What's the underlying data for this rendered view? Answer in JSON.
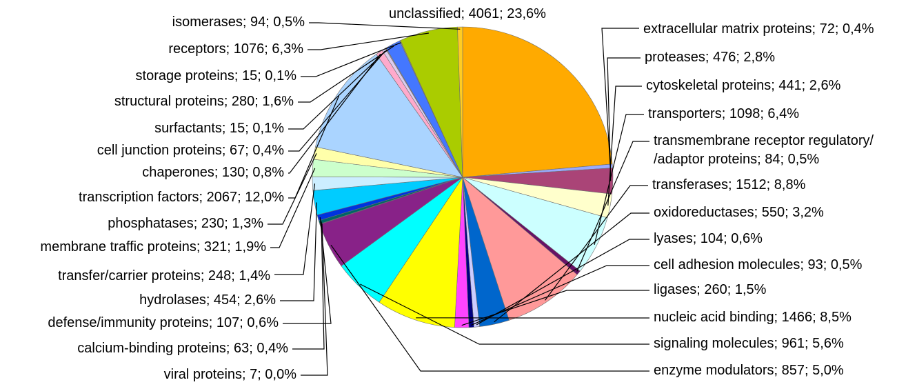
{
  "chart_data": {
    "type": "pie",
    "title": "",
    "start": "top",
    "direction": "clockwise",
    "legend": "none",
    "slices": [
      {
        "label": "unclassified; 4061; 23,6%",
        "name": "unclassified",
        "count": 4061,
        "percent": 23.6,
        "color": "#FFAA00"
      },
      {
        "label": "extracellular matrix proteins; 72; 0,4%",
        "name": "extracellular matrix proteins",
        "count": 72,
        "percent": 0.4,
        "color": "#99AAFF"
      },
      {
        "label": "proteases; 476; 2,8%",
        "name": "proteases",
        "count": 476,
        "percent": 2.8,
        "color": "#AA4477"
      },
      {
        "label": "cytoskeletal proteins; 441; 2,6%",
        "name": "cytoskeletal proteins",
        "count": 441,
        "percent": 2.6,
        "color": "#FFFFCC"
      },
      {
        "label": "transporters; 1098; 6,4%",
        "name": "transporters",
        "count": 1098,
        "percent": 6.4,
        "color": "#CCFFFF"
      },
      {
        "label": "transmembrane receptor regulatory/\n/adaptor proteins; 84; 0,5%",
        "name": "transmembrane receptor regulatory/adaptor proteins",
        "count": 84,
        "percent": 0.5,
        "color": "#661166"
      },
      {
        "label": "transferases; 1512; 8,8%",
        "name": "transferases",
        "count": 1512,
        "percent": 8.8,
        "color": "#FF9999"
      },
      {
        "label": "oxidoreductases; 550; 3,2%",
        "name": "oxidoreductases",
        "count": 550,
        "percent": 3.2,
        "color": "#0066CC"
      },
      {
        "label": "lyases; 104; 0,6%",
        "name": "lyases",
        "count": 104,
        "percent": 0.6,
        "color": "#CCCCFF"
      },
      {
        "label": "cell adhesion molecules; 93; 0,5%",
        "name": "cell adhesion molecules",
        "count": 93,
        "percent": 0.5,
        "color": "#000080"
      },
      {
        "label": "ligases; 260; 1,5%",
        "name": "ligases",
        "count": 260,
        "percent": 1.5,
        "color": "#FF44FF"
      },
      {
        "label": "nucleic acid binding; 1466; 8,5%",
        "name": "nucleic acid binding",
        "count": 1466,
        "percent": 8.5,
        "color": "#FFFF00"
      },
      {
        "label": "signaling molecules; 961; 5,6%",
        "name": "signaling molecules",
        "count": 961,
        "percent": 5.6,
        "color": "#00FFFF"
      },
      {
        "label": "enzyme modulators; 857; 5,0%",
        "name": "enzyme modulators",
        "count": 857,
        "percent": 5.0,
        "color": "#882288"
      },
      {
        "label": "viral proteins; 7; 0,0%",
        "name": "viral proteins",
        "count": 7,
        "percent": 0.0,
        "color": "#222222"
      },
      {
        "label": "calcium-binding proteins; 63; 0,4%",
        "name": "calcium-binding proteins",
        "count": 63,
        "percent": 0.4,
        "color": "#006666"
      },
      {
        "label": "defense/immunity proteins; 107; 0,6%",
        "name": "defense/immunity proteins",
        "count": 107,
        "percent": 0.6,
        "color": "#0033DD"
      },
      {
        "label": "hydrolases; 454; 2,6%",
        "name": "hydrolases",
        "count": 454,
        "percent": 2.6,
        "color": "#00CCFF"
      },
      {
        "label": "transfer/carrier proteins; 248; 1,4%",
        "name": "transfer/carrier proteins",
        "count": 248,
        "percent": 1.4,
        "color": "#CCEEFF"
      },
      {
        "label": "membrane traffic proteins; 321; 1,9%",
        "name": "membrane traffic proteins",
        "count": 321,
        "percent": 1.9,
        "color": "#CCFFCC"
      },
      {
        "label": "phosphatases; 230; 1,3%",
        "name": "phosphatases",
        "count": 230,
        "percent": 1.3,
        "color": "#FFFFAA"
      },
      {
        "label": "transcription factors; 2067; 12,0%",
        "name": "transcription factors",
        "count": 2067,
        "percent": 12.0,
        "color": "#AAD4FF"
      },
      {
        "label": "chaperones; 130; 0,8%",
        "name": "chaperones",
        "count": 130,
        "percent": 0.8,
        "color": "#FFAACC"
      },
      {
        "label": "cell junction proteins; 67; 0,4%",
        "name": "cell junction proteins",
        "count": 67,
        "percent": 0.4,
        "color": "#DDCCEE"
      },
      {
        "label": "surfactants; 15; 0,1%",
        "name": "surfactants",
        "count": 15,
        "percent": 0.1,
        "color": "#AAAAAA"
      },
      {
        "label": "structural proteins; 280; 1,6%",
        "name": "structural proteins",
        "count": 280,
        "percent": 1.6,
        "color": "#4477FF"
      },
      {
        "label": "storage proteins; 15; 0,1%",
        "name": "storage proteins",
        "count": 15,
        "percent": 0.1,
        "color": "#999999"
      },
      {
        "label": "receptors; 1076; 6,3%",
        "name": "receptors",
        "count": 1076,
        "percent": 6.3,
        "color": "#AACC00"
      },
      {
        "label": "isomerases; 94; 0,5%",
        "name": "isomerases",
        "count": 94,
        "percent": 0.5,
        "color": "#FFCC22"
      }
    ]
  }
}
